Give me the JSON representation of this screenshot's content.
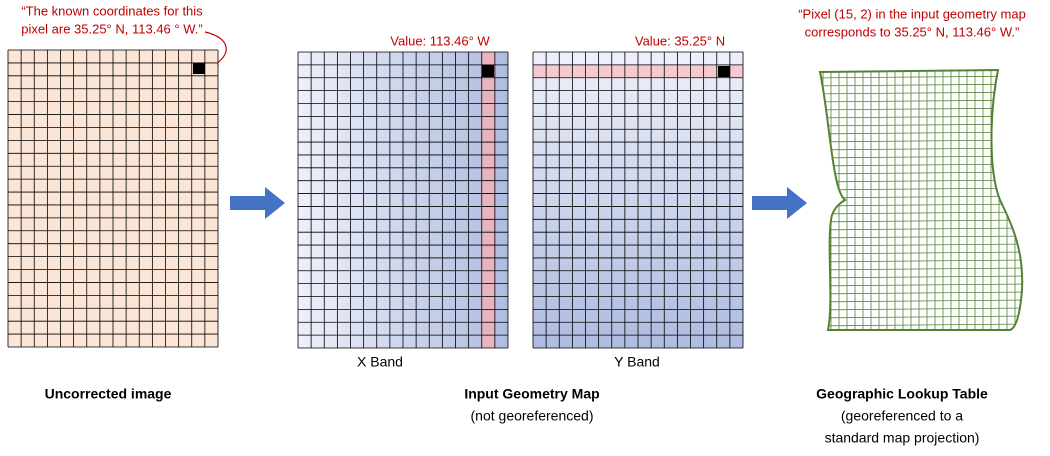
{
  "annotations": {
    "pixel_note": [
      "“The known coordinates for this",
      "pixel are 35.25° N, 113.46 ° W.”"
    ],
    "x_value": "Value: 113.46° W",
    "y_value": "Value: 35.25° N",
    "lookup_note": [
      "“Pixel (15, 2) in the input geometry map",
      "corresponds to 35.25° N, 113.46° W.”"
    ]
  },
  "panels": {
    "x_band": "X Band",
    "y_band": "Y Band"
  },
  "captions": {
    "uncorrected": "Uncorrected image",
    "geometry_map": [
      "Input Geometry Map",
      "(not georeferenced)"
    ],
    "lookup_table": [
      "Geographic Lookup Table",
      "(georeferenced to a",
      "standard map projection)"
    ]
  }
}
